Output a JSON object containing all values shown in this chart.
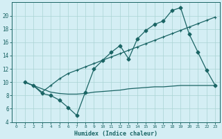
{
  "xlabel": "Humidex (Indice chaleur)",
  "bg_color": "#d4eef4",
  "line_color": "#1a6464",
  "grid_color": "#aad4d4",
  "xlim": [
    -0.5,
    23.5
  ],
  "ylim": [
    4,
    22
  ],
  "yticks": [
    4,
    6,
    8,
    10,
    12,
    14,
    16,
    18,
    20
  ],
  "xticks": [
    0,
    1,
    2,
    3,
    4,
    5,
    6,
    7,
    8,
    9,
    10,
    11,
    12,
    13,
    14,
    15,
    16,
    17,
    18,
    19,
    20,
    21,
    22,
    23
  ],
  "line1_x": [
    1,
    2,
    3,
    4,
    5,
    6,
    7,
    8,
    9,
    10,
    11,
    12,
    13,
    14,
    15,
    16,
    17,
    18,
    19,
    20,
    21,
    22,
    23
  ],
  "line1_y": [
    10.0,
    9.5,
    9.0,
    8.5,
    8.3,
    8.2,
    8.2,
    8.3,
    8.5,
    8.6,
    8.7,
    8.8,
    9.0,
    9.1,
    9.2,
    9.3,
    9.3,
    9.4,
    9.5,
    9.5,
    9.5,
    9.5,
    9.5
  ],
  "line2_x": [
    1,
    2,
    3,
    4,
    5,
    6,
    7,
    8,
    9,
    10,
    11,
    12,
    13,
    14,
    15,
    16,
    17,
    18,
    19,
    20,
    21,
    22,
    23
  ],
  "line2_y": [
    10.0,
    9.5,
    8.5,
    9.5,
    10.5,
    11.3,
    11.8,
    12.3,
    12.8,
    13.3,
    13.8,
    14.3,
    14.8,
    15.3,
    15.8,
    16.3,
    16.8,
    17.3,
    17.8,
    18.3,
    18.8,
    19.3,
    19.8
  ],
  "line3_x": [
    1,
    2,
    3,
    4,
    5,
    6,
    7,
    8,
    9,
    10,
    11,
    12,
    13,
    14,
    15,
    16,
    17,
    18,
    19,
    20,
    21,
    22,
    23
  ],
  "line3_y": [
    10.0,
    9.5,
    8.3,
    8.0,
    7.3,
    6.2,
    5.0,
    8.5,
    12.0,
    13.3,
    14.5,
    15.5,
    13.5,
    16.5,
    17.8,
    18.7,
    19.2,
    20.8,
    21.2,
    17.2,
    14.5,
    11.8,
    9.5
  ]
}
